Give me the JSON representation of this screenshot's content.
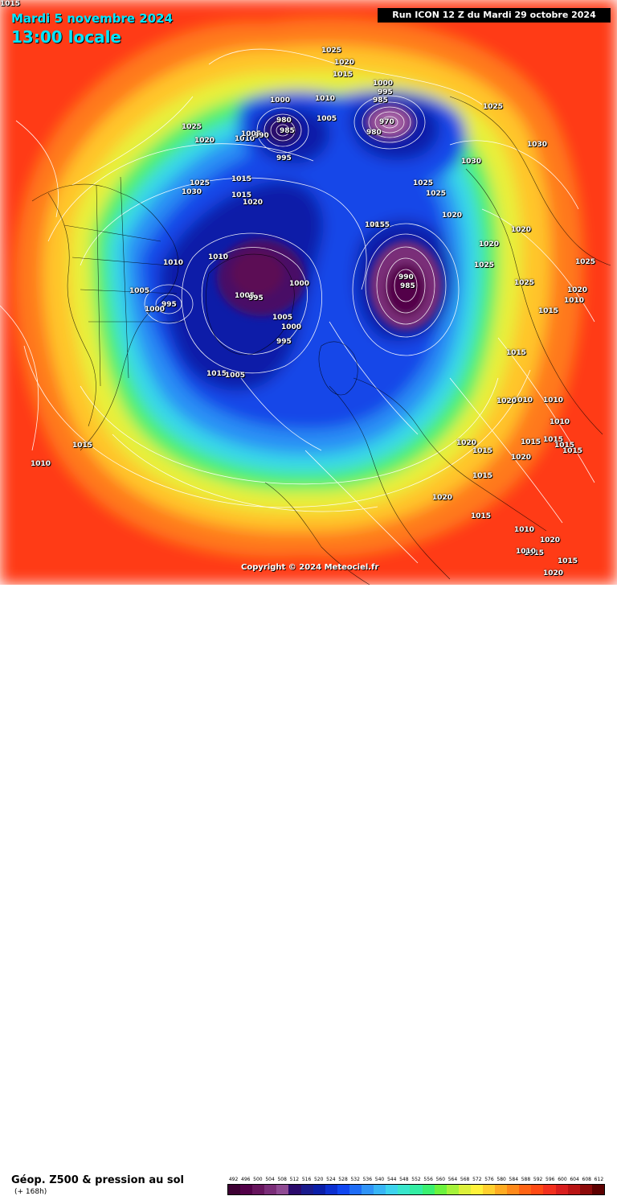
{
  "header": {
    "date": "Mardi 5 novembre 2024",
    "time": "13:00 locale",
    "run": "Run ICON 12 Z du Mardi 29 octobre 2024"
  },
  "copyright": "Copyright © 2024 Meteociel.fr",
  "legend": {
    "title": "Géop. Z500 & pression au sol",
    "subtitle": "(+ 168h)",
    "scale": [
      {
        "label": "492",
        "color": "#3d0033"
      },
      {
        "label": "496",
        "color": "#520048"
      },
      {
        "label": "500",
        "color": "#66145c"
      },
      {
        "label": "504",
        "color": "#7a2d78"
      },
      {
        "label": "508",
        "color": "#8f4a93"
      },
      {
        "label": "512",
        "color": "#2b0a6b"
      },
      {
        "label": "516",
        "color": "#1a1a8c"
      },
      {
        "label": "520",
        "color": "#0a1ea8"
      },
      {
        "label": "524",
        "color": "#0c2fd0"
      },
      {
        "label": "528",
        "color": "#1046f0"
      },
      {
        "label": "532",
        "color": "#1e6cf5"
      },
      {
        "label": "536",
        "color": "#2f93f7"
      },
      {
        "label": "540",
        "color": "#38b5f6"
      },
      {
        "label": "544",
        "color": "#3dd3ee"
      },
      {
        "label": "548",
        "color": "#39e6cc"
      },
      {
        "label": "552",
        "color": "#33eda3"
      },
      {
        "label": "556",
        "color": "#3af070"
      },
      {
        "label": "560",
        "color": "#6cf23d"
      },
      {
        "label": "564",
        "color": "#a5f23a"
      },
      {
        "label": "568",
        "color": "#dcf03a"
      },
      {
        "label": "572",
        "color": "#fff23a"
      },
      {
        "label": "576",
        "color": "#ffd02e"
      },
      {
        "label": "580",
        "color": "#ffac22"
      },
      {
        "label": "584",
        "color": "#ff8a1a"
      },
      {
        "label": "588",
        "color": "#ff6414"
      },
      {
        "label": "592",
        "color": "#ff4a14"
      },
      {
        "label": "596",
        "color": "#f2301e"
      },
      {
        "label": "600",
        "color": "#d81e1e"
      },
      {
        "label": "604",
        "color": "#b81414"
      },
      {
        "label": "608",
        "color": "#8c0a0a"
      },
      {
        "label": "612",
        "color": "#5c0000"
      }
    ]
  },
  "pressure_labels": [
    "1025",
    "1020",
    "1015",
    "1000",
    "995",
    "985",
    "970",
    "980",
    "1010",
    "1005",
    "1000",
    "980",
    "985",
    "1025",
    "1020",
    "1010",
    "1005",
    "995",
    "990",
    "1025",
    "1030",
    "1015",
    "1020",
    "1025",
    "1025",
    "1015",
    "1020",
    "1000",
    "990",
    "985",
    "995",
    "1005",
    "1000",
    "1005",
    "995",
    "1000",
    "995",
    "1015",
    "1005",
    "1010",
    "1010",
    "1015",
    "1005",
    "1015",
    "1020",
    "1025",
    "1015",
    "1010",
    "1025",
    "1030",
    "1030",
    "1020",
    "1025",
    "1020",
    "1015",
    "1010",
    "1015",
    "1015",
    "1020",
    "1015",
    "1020",
    "1015",
    "1010",
    "1020",
    "1015",
    "1010",
    "1015",
    "1020",
    "1025",
    "1020",
    "1010",
    "1015",
    "1020",
    "1010",
    "1015",
    "1015",
    "1010",
    "1015",
    "1015"
  ]
}
